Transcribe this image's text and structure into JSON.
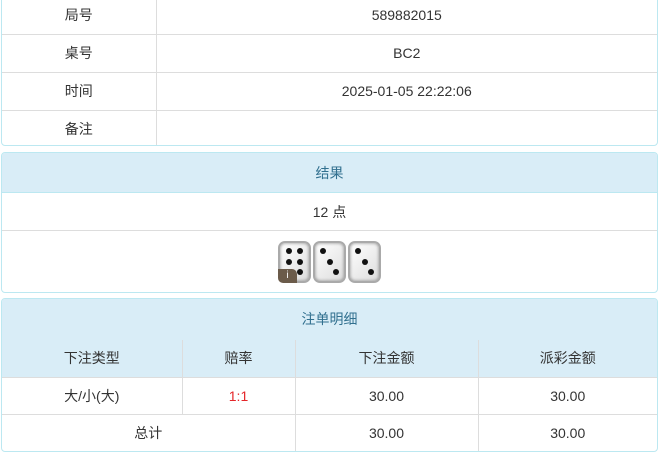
{
  "info": [
    {
      "label": "局号",
      "value": "589882015"
    },
    {
      "label": "桌号",
      "value": "BC2"
    },
    {
      "label": "时间",
      "value": "2025-01-05 22:22:06"
    },
    {
      "label": "备注",
      "value": ""
    }
  ],
  "result": {
    "title": "结果",
    "points": "12 点",
    "dice": [
      6,
      3,
      3
    ],
    "badge": "i"
  },
  "bets": {
    "title": "注单明细",
    "columns": [
      "下注类型",
      "赔率",
      "下注金额",
      "派彩金额"
    ],
    "rows": [
      {
        "type": "大/小(大)",
        "odds": "1:1",
        "amount": "30.00",
        "payout": "30.00"
      }
    ],
    "total": {
      "label": "总计",
      "amount": "30.00",
      "payout": "30.00"
    },
    "odds_color": "#e4262a"
  }
}
